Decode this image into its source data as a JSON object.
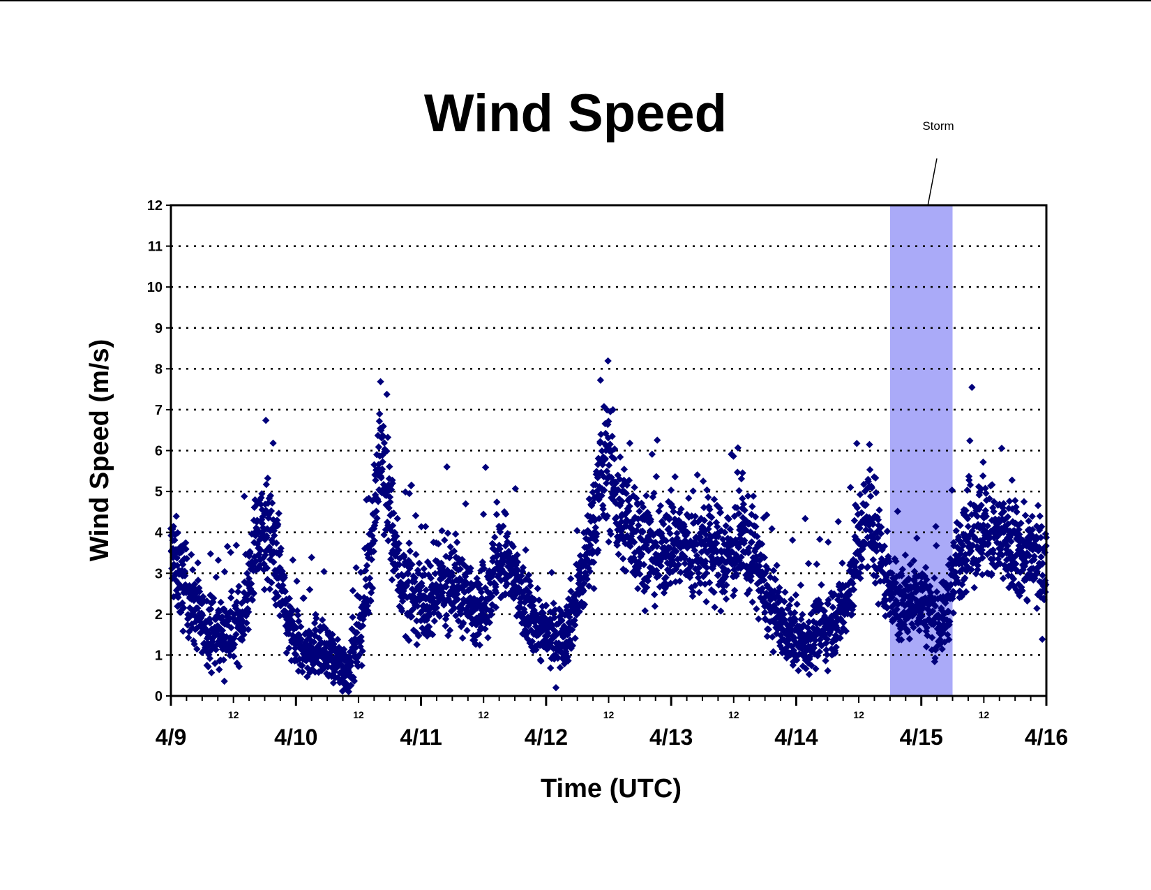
{
  "chart_data": {
    "type": "scatter",
    "title": "Wind Speed",
    "xlabel": "Time (UTC)",
    "ylabel": "Wind Speed (m/s)",
    "x_range": [
      "4/9 00:00",
      "4/16 00:00"
    ],
    "ylim": [
      0,
      12
    ],
    "yticks": [
      0,
      1,
      2,
      3,
      4,
      5,
      6,
      7,
      8,
      9,
      10,
      11,
      12
    ],
    "grid": "horizontal dotted",
    "x_day_labels": [
      "4/9",
      "4/10",
      "4/11",
      "4/12",
      "4/13",
      "4/14",
      "4/15",
      "4/16"
    ],
    "x_noon_label": "12",
    "marker_color": "#00007b",
    "storm_color": "#aaaaf8",
    "annotation": {
      "text": "Storm",
      "shaded_range": [
        "4/14 18:00",
        "4/15 06:00"
      ]
    },
    "series": [
      {
        "name": "",
        "x": [
          "4/9 00:00",
          "4/9 02:00",
          "4/9 04:00",
          "4/9 06:00",
          "4/9 08:00",
          "4/9 10:00",
          "4/9 12:00",
          "4/9 14:00",
          "4/9 16:00",
          "4/9 18:00",
          "4/9 20:00",
          "4/9 22:00",
          "4/10 00:00",
          "4/10 02:00",
          "4/10 04:00",
          "4/10 06:00",
          "4/10 08:00",
          "4/10 10:00",
          "4/10 12:00",
          "4/10 14:00",
          "4/10 16:00",
          "4/10 18:00",
          "4/10 20:00",
          "4/10 22:00",
          "4/11 00:00",
          "4/11 02:00",
          "4/11 04:00",
          "4/11 06:00",
          "4/11 08:00",
          "4/11 10:00",
          "4/11 12:00",
          "4/11 14:00",
          "4/11 16:00",
          "4/11 18:00",
          "4/11 20:00",
          "4/11 22:00",
          "4/12 00:00",
          "4/12 02:00",
          "4/12 04:00",
          "4/12 06:00",
          "4/12 08:00",
          "4/12 10:00",
          "4/12 12:00",
          "4/12 14:00",
          "4/12 16:00",
          "4/12 18:00",
          "4/12 20:00",
          "4/12 22:00",
          "4/13 00:00",
          "4/13 02:00",
          "4/13 04:00",
          "4/13 06:00",
          "4/13 08:00",
          "4/13 10:00",
          "4/13 12:00",
          "4/13 14:00",
          "4/13 16:00",
          "4/13 18:00",
          "4/13 20:00",
          "4/13 22:00",
          "4/14 00:00",
          "4/14 02:00",
          "4/14 04:00",
          "4/14 06:00",
          "4/14 08:00",
          "4/14 10:00",
          "4/14 12:00",
          "4/14 14:00",
          "4/14 16:00",
          "4/14 18:00",
          "4/14 20:00",
          "4/14 22:00",
          "4/15 00:00",
          "4/15 02:00",
          "4/15 04:00",
          "4/15 06:00",
          "4/15 08:00",
          "4/15 10:00",
          "4/15 12:00",
          "4/15 14:00",
          "4/15 16:00",
          "4/15 18:00",
          "4/15 20:00",
          "4/15 22:00",
          "4/16 00:00"
        ],
        "y": [
          3.5,
          2.8,
          2.3,
          1.7,
          1.6,
          1.5,
          1.6,
          2.0,
          3.5,
          4.0,
          3.6,
          2.0,
          1.2,
          1.1,
          1.3,
          0.9,
          0.8,
          0.7,
          1.2,
          3.0,
          6.0,
          4.5,
          2.8,
          2.6,
          2.4,
          2.2,
          2.7,
          2.9,
          2.5,
          2.2,
          2.3,
          3.0,
          3.4,
          2.8,
          2.1,
          1.8,
          1.5,
          1.4,
          1.6,
          2.4,
          3.5,
          5.0,
          5.8,
          4.5,
          4.2,
          3.8,
          3.6,
          3.4,
          3.9,
          3.7,
          3.5,
          3.6,
          3.5,
          3.4,
          3.6,
          3.8,
          3.5,
          2.5,
          2.0,
          1.6,
          1.4,
          1.3,
          1.6,
          1.7,
          2.0,
          2.3,
          3.8,
          4.4,
          3.5,
          2.5,
          2.2,
          2.3,
          2.4,
          2.0,
          1.8,
          2.8,
          3.8,
          4.2,
          4.0,
          3.9,
          3.7,
          3.5,
          3.5,
          3.3,
          3.0
        ]
      }
    ]
  }
}
